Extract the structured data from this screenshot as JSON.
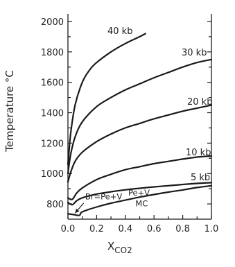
{
  "chart_data": {
    "type": "line",
    "xlabel": "X",
    "xlabel_subscript": "CO2",
    "ylabel": "Temperature °C",
    "xlim": [
      0.0,
      1.0
    ],
    "ylim": [
      700,
      2050
    ],
    "xticks": [
      0.0,
      0.2,
      0.4,
      0.6,
      0.8,
      1.0
    ],
    "xtick_labels": [
      "0.0",
      "0.2",
      "0.4",
      "0.6",
      "0.8",
      "1.0"
    ],
    "yticks": [
      800,
      1000,
      1200,
      1400,
      1600,
      1800,
      2000
    ],
    "ytick_labels": [
      "800",
      "1000",
      "1200",
      "1400",
      "1600",
      "1800",
      "2000"
    ],
    "grid": false,
    "series": [
      {
        "name": "40 kb",
        "x": [
          0.0,
          0.02,
          0.05,
          0.1,
          0.15,
          0.2,
          0.3,
          0.4,
          0.5,
          0.54
        ],
        "y": [
          1060,
          1270,
          1450,
          1600,
          1680,
          1730,
          1800,
          1855,
          1900,
          1920
        ]
      },
      {
        "name": "30 kb",
        "x": [
          0.0,
          0.02,
          0.05,
          0.1,
          0.2,
          0.3,
          0.4,
          0.5,
          0.6,
          0.7,
          0.8,
          0.9,
          1.0
        ],
        "y": [
          1000,
          1130,
          1240,
          1340,
          1440,
          1500,
          1550,
          1590,
          1630,
          1665,
          1700,
          1730,
          1750
        ]
      },
      {
        "name": "20 kb",
        "x": [
          0.0,
          0.02,
          0.05,
          0.1,
          0.2,
          0.3,
          0.4,
          0.5,
          0.6,
          0.7,
          0.8,
          0.9,
          1.0
        ],
        "y": [
          945,
          1010,
          1080,
          1140,
          1210,
          1260,
          1300,
          1330,
          1360,
          1385,
          1410,
          1430,
          1450
        ]
      },
      {
        "name": "10 kb",
        "x": [
          0.0,
          0.03,
          0.06,
          0.1,
          0.2,
          0.3,
          0.4,
          0.5,
          0.6,
          0.7,
          0.8,
          0.9,
          1.0
        ],
        "y": [
          840,
          830,
          870,
          905,
          960,
          995,
          1025,
          1045,
          1065,
          1080,
          1095,
          1108,
          1115
        ]
      },
      {
        "name": "5 kb",
        "x": [
          0.0,
          0.03,
          0.06,
          0.1,
          0.2,
          0.3,
          0.4,
          0.5,
          0.6,
          0.7,
          0.8,
          0.9,
          1.0
        ],
        "y": [
          810,
          795,
          820,
          840,
          865,
          880,
          893,
          903,
          912,
          920,
          928,
          935,
          940
        ]
      },
      {
        "name": "MC",
        "x": [
          0.0,
          0.04,
          0.08,
          0.1,
          0.2,
          0.3,
          0.4,
          0.5,
          0.6,
          0.7,
          0.8,
          0.9,
          1.0
        ],
        "y": [
          735,
          730,
          725,
          748,
          780,
          805,
          825,
          845,
          862,
          878,
          892,
          908,
          920
        ]
      }
    ],
    "annotations": [
      {
        "text": "Br=Pe+V",
        "x": 0.12,
        "y": 830
      },
      {
        "text": "Pe+V",
        "x": 0.42,
        "y": 855
      },
      {
        "text": "MC",
        "x": 0.47,
        "y": 785
      }
    ],
    "arrow": {
      "from": [
        0.11,
        806
      ],
      "to": [
        0.05,
        740
      ]
    }
  }
}
